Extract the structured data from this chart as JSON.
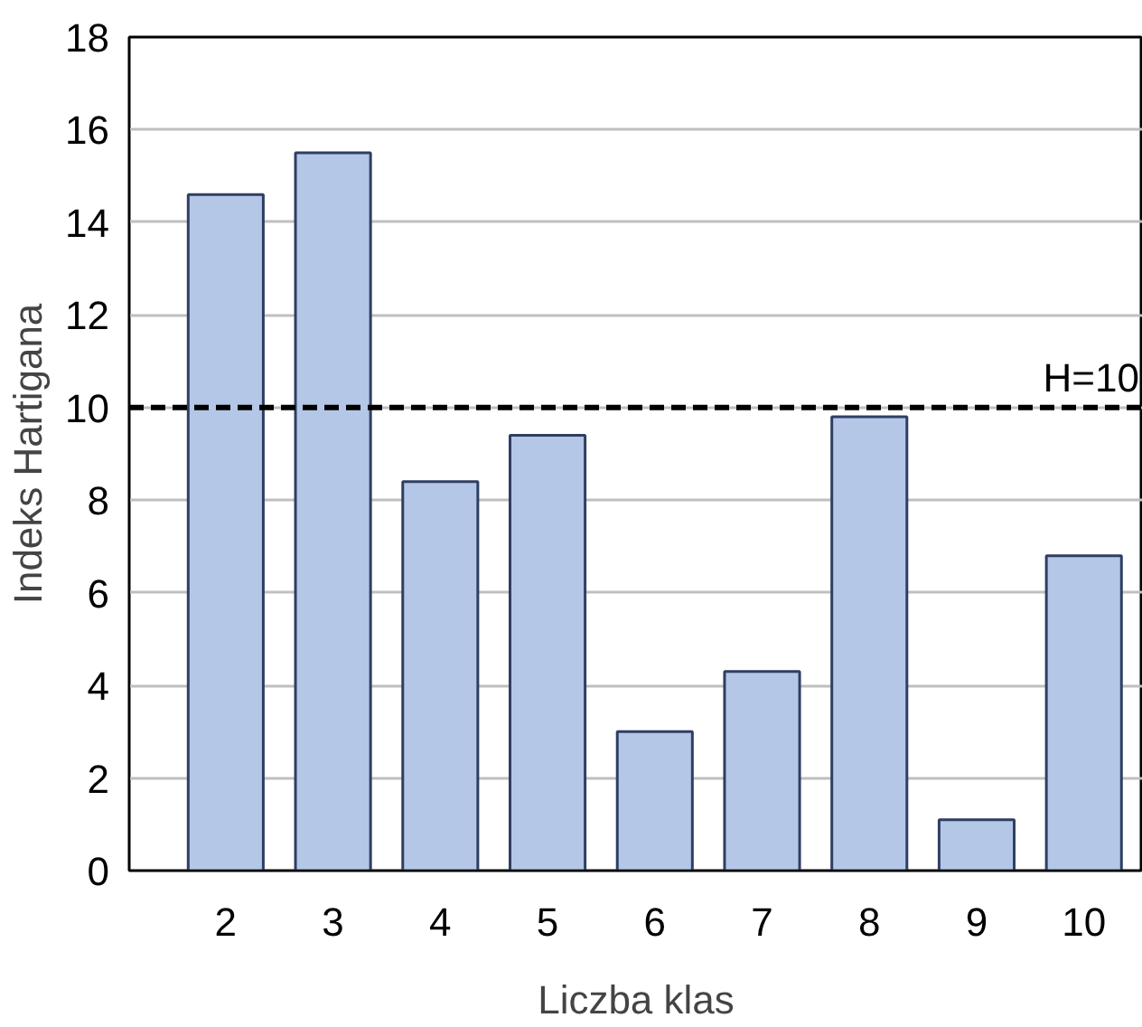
{
  "chart_data": {
    "type": "bar",
    "xlabel": "Liczba klas",
    "ylabel": "Indeks Hartigana",
    "categories": [
      "2",
      "3",
      "4",
      "5",
      "6",
      "7",
      "8",
      "9",
      "10"
    ],
    "values": [
      14.6,
      15.5,
      8.4,
      9.4,
      3.0,
      4.3,
      9.8,
      1.1,
      6.8
    ],
    "color": "#b4c7e7",
    "ylim": [
      0,
      18
    ],
    "yticks": [
      0,
      2,
      4,
      6,
      8,
      10,
      12,
      14,
      16,
      18
    ],
    "grid": "y",
    "ref_lines": [
      {
        "axis": "y",
        "value": 10,
        "label": "H=10",
        "color": "#000000",
        "line_style": "dashed"
      }
    ]
  }
}
